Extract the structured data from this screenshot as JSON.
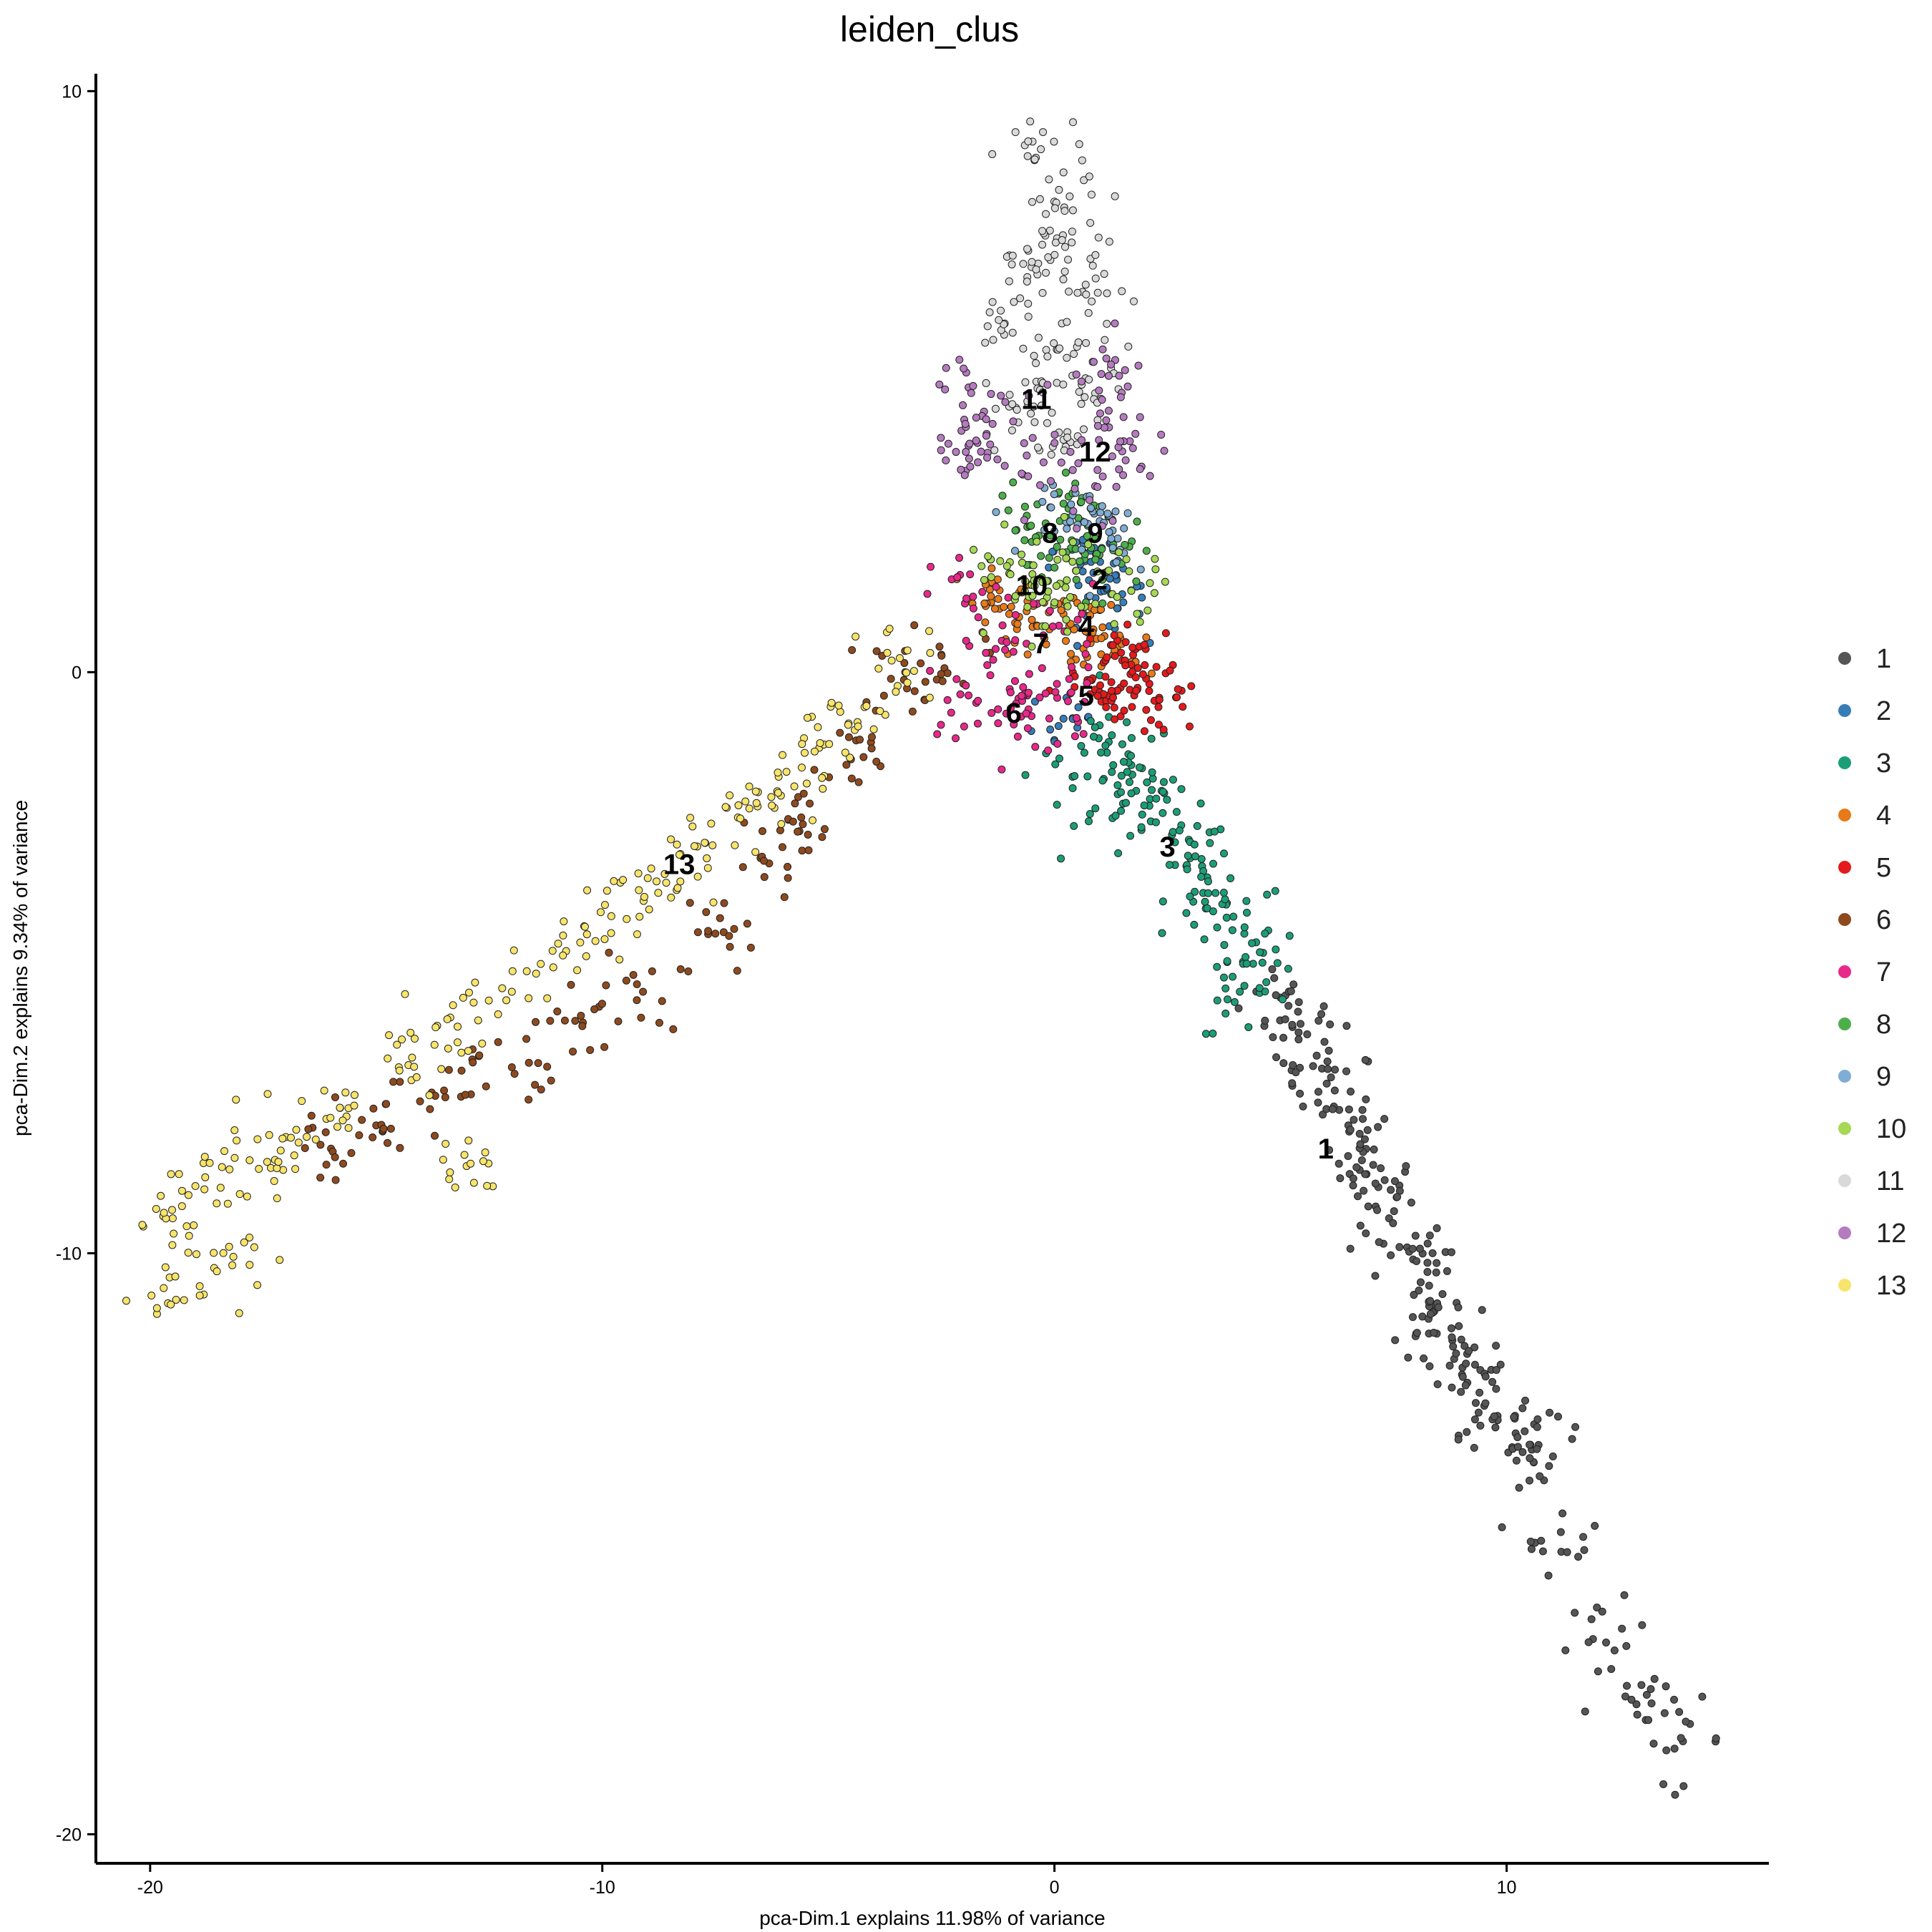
{
  "chart_data": {
    "type": "scatter",
    "title": "leiden_clus",
    "xlabel": "pca-Dim.1 explains 11.98% of variance",
    "ylabel": "pca-Dim.2 explains 9.34% of variance",
    "xlim": [
      -21.2,
      15.8
    ],
    "ylim": [
      -20.5,
      10.3
    ],
    "xticks": [
      -20,
      -10,
      0,
      10
    ],
    "yticks": [
      -20,
      -10,
      0,
      10
    ],
    "grid": false,
    "legend": "right",
    "series": [
      {
        "name": "1",
        "color": "#555555",
        "center": [
          6,
          -8.2
        ],
        "points": [
          [
            5,
            -5.6
          ],
          [
            5.4,
            -6.2
          ],
          [
            5.8,
            -6.6
          ],
          [
            6.2,
            -7.2
          ],
          [
            6.5,
            -7.8
          ],
          [
            6.8,
            -8.4
          ],
          [
            7.1,
            -8.8
          ],
          [
            7.4,
            -9.4
          ],
          [
            7.8,
            -9.9
          ],
          [
            8.1,
            -10.5
          ],
          [
            8.4,
            -11
          ],
          [
            8.8,
            -11.5
          ],
          [
            9.1,
            -11.9
          ],
          [
            9.4,
            -12.4
          ],
          [
            9.8,
            -12.8
          ],
          [
            10.2,
            -13.1
          ],
          [
            10.6,
            -13.6
          ],
          [
            11.2,
            -14.8
          ],
          [
            12.2,
            -16.7
          ],
          [
            13.1,
            -17.6
          ],
          [
            13.9,
            -18.4
          ]
        ]
      },
      {
        "name": "2",
        "color": "#377EB8",
        "center": [
          1.0,
          1.6
        ],
        "points": [
          [
            0.6,
            1.9
          ],
          [
            1.1,
            1.4
          ],
          [
            1.4,
            1.1
          ],
          [
            0.2,
            -0.8
          ],
          [
            0.9,
            2.1
          ]
        ]
      },
      {
        "name": "3",
        "color": "#1B9E77",
        "center": [
          2.5,
          -3.0
        ],
        "points": [
          [
            1.2,
            -1.2
          ],
          [
            1.7,
            -1.6
          ],
          [
            2.1,
            -2.3
          ],
          [
            2.6,
            -2.8
          ],
          [
            3.0,
            -3.2
          ],
          [
            3.4,
            -3.6
          ],
          [
            3.8,
            -4.0
          ],
          [
            4.2,
            -4.5
          ],
          [
            4.6,
            -5.0
          ],
          [
            4.1,
            -5.5
          ],
          [
            1.4,
            -2.1
          ],
          [
            0.4,
            -1.8
          ]
        ]
      },
      {
        "name": "4",
        "color": "#E87A1A",
        "center": [
          0.7,
          0.8
        ],
        "points": [
          [
            -1.0,
            1.0
          ],
          [
            -0.5,
            0.9
          ],
          [
            0.2,
            1.0
          ],
          [
            0.8,
            0.5
          ],
          [
            1.3,
            0.3
          ],
          [
            -1.4,
            1.2
          ]
        ]
      },
      {
        "name": "5",
        "color": "#E41A1C",
        "center": [
          0.7,
          -0.4
        ],
        "points": [
          [
            0.9,
            -0.3
          ],
          [
            1.5,
            0.2
          ],
          [
            2.1,
            -0.2
          ],
          [
            1.8,
            0.4
          ],
          [
            1.2,
            -0.4
          ],
          [
            2.3,
            -0.6
          ]
        ]
      },
      {
        "name": "6",
        "color": "#8E4A1E",
        "center": [
          -0.9,
          -0.7
        ],
        "points": [
          [
            -2.5,
            0.3
          ],
          [
            -3.3,
            0
          ],
          [
            -4.5,
            -1.5
          ],
          [
            -5.6,
            -2.5
          ],
          [
            -6.5,
            -3.2
          ],
          [
            -7.5,
            -4.5
          ],
          [
            -9.1,
            -5.5
          ],
          [
            -10.6,
            -6.0
          ],
          [
            -12.0,
            -6.8
          ],
          [
            -13.5,
            -7.2
          ],
          [
            -15,
            -7.8
          ],
          [
            -16,
            -8.2
          ]
        ]
      },
      {
        "name": "7",
        "color": "#E7298A",
        "center": [
          -0.3,
          0.5
        ],
        "points": [
          [
            -1.8,
            1.3
          ],
          [
            -1.3,
            0.4
          ],
          [
            -0.6,
            -0.4
          ],
          [
            0.1,
            0.8
          ],
          [
            -0.9,
            -0.9
          ],
          [
            -1.9,
            -0.4
          ],
          [
            0.3,
            -0.5
          ]
        ]
      },
      {
        "name": "8",
        "color": "#4DAF4A",
        "center": [
          -0.1,
          2.4
        ],
        "points": [
          [
            -0.6,
            2.5
          ],
          [
            0.2,
            2.9
          ],
          [
            0.9,
            2.3
          ],
          [
            -0.3,
            2.0
          ],
          [
            1.3,
            2.1
          ]
        ]
      },
      {
        "name": "9",
        "color": "#7FADD3",
        "center": [
          0.9,
          2.4
        ],
        "points": [
          [
            1.0,
            2.6
          ],
          [
            1.4,
            2.3
          ],
          [
            0.4,
            2.7
          ]
        ]
      },
      {
        "name": "10",
        "color": "#A6D854",
        "center": [
          -0.5,
          1.5
        ],
        "points": [
          [
            -0.5,
            1.5
          ],
          [
            0.4,
            1.9
          ],
          [
            1.7,
            1.4
          ],
          [
            -1.0,
            1.7
          ],
          [
            0.0,
            1.2
          ]
        ]
      },
      {
        "name": "11",
        "color": "#D9D9D9",
        "center": [
          -0.4,
          4.7
        ],
        "points": [
          [
            -0.3,
            9.0
          ],
          [
            0.1,
            8.3
          ],
          [
            -0.1,
            7.6
          ],
          [
            0.3,
            7.1
          ],
          [
            -0.6,
            6.8
          ],
          [
            0.7,
            6.5
          ],
          [
            -1.1,
            6.0
          ],
          [
            0.5,
            5.6
          ],
          [
            -0.4,
            5.0
          ],
          [
            0.9,
            4.8
          ],
          [
            -0.8,
            4.3
          ],
          [
            0.2,
            4.0
          ]
        ]
      },
      {
        "name": "12",
        "color": "#B57BBF",
        "center": [
          0.9,
          3.8
        ],
        "points": [
          [
            -1.9,
            4.9
          ],
          [
            1.2,
            5.1
          ],
          [
            -1.5,
            4.1
          ],
          [
            1.5,
            3.8
          ],
          [
            -0.7,
            3.4
          ],
          [
            0.9,
            3.2
          ],
          [
            -1.9,
            3.9
          ],
          [
            1.2,
            4.5
          ]
        ]
      },
      {
        "name": "13",
        "color": "#F7E46A",
        "center": [
          -8.3,
          -3.3
        ],
        "points": [
          [
            -3.6,
            0.2
          ],
          [
            -4.2,
            -0.6
          ],
          [
            -5.2,
            -1.3
          ],
          [
            -6.1,
            -1.8
          ],
          [
            -7.0,
            -2.5
          ],
          [
            -7.9,
            -3.0
          ],
          [
            -8.8,
            -3.6
          ],
          [
            -9.8,
            -4.2
          ],
          [
            -10.8,
            -4.8
          ],
          [
            -12.0,
            -5.5
          ],
          [
            -13.2,
            -6.1
          ],
          [
            -14.5,
            -6.8
          ],
          [
            -15.8,
            -7.5
          ],
          [
            -17.0,
            -8.0
          ],
          [
            -17.8,
            -8.4
          ],
          [
            -18.8,
            -8.9
          ],
          [
            -19.5,
            -9.4
          ],
          [
            -19.7,
            -10.6
          ],
          [
            -17.8,
            -10.2
          ],
          [
            -13.0,
            -8.5
          ]
        ]
      }
    ]
  }
}
